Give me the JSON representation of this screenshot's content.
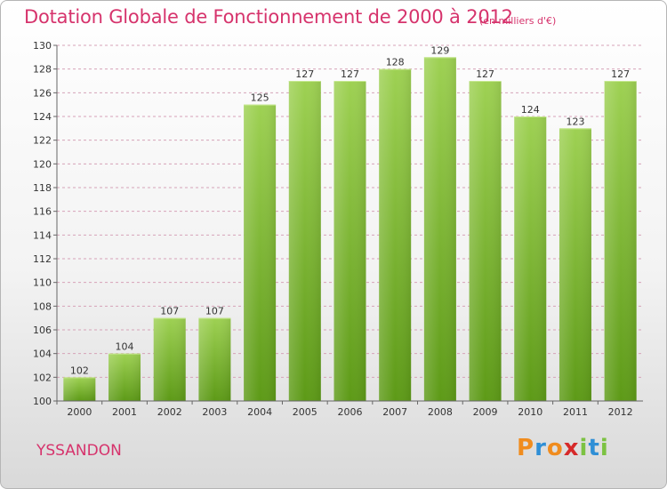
{
  "title": "Dotation Globale de Fonctionnement de 2000 à 2012",
  "unit_note": "(en milliers d'€)",
  "commune": "YSSANDON",
  "logo": {
    "letters": [
      "P",
      "r",
      "o",
      "x",
      "i",
      "t",
      "i"
    ],
    "colors": [
      "#f08c1e",
      "#2f8fd6",
      "#f08c1e",
      "#d62a2a",
      "#7cc242",
      "#2f8fd6",
      "#7cc242"
    ]
  },
  "colors": {
    "accent": "#d6336c",
    "bar_light": "#9ed153",
    "bar_dark": "#5d9a17",
    "grid": "#d6a3b8",
    "axis": "#666666"
  },
  "chart_data": {
    "type": "bar",
    "categories": [
      "2000",
      "2001",
      "2002",
      "2003",
      "2004",
      "2005",
      "2006",
      "2007",
      "2008",
      "2009",
      "2010",
      "2011",
      "2012"
    ],
    "values": [
      102,
      104,
      107,
      107,
      125,
      127,
      127,
      128,
      129,
      127,
      124,
      123,
      127
    ],
    "ylim": [
      100,
      130
    ],
    "ytick_step": 2,
    "ytick_labels": [
      "100",
      "102",
      "104",
      "106",
      "108",
      "110",
      "112",
      "114",
      "116",
      "118",
      "120",
      "122",
      "124",
      "126",
      "128",
      "130"
    ],
    "grid": true,
    "xlabel": "",
    "ylabel": ""
  }
}
